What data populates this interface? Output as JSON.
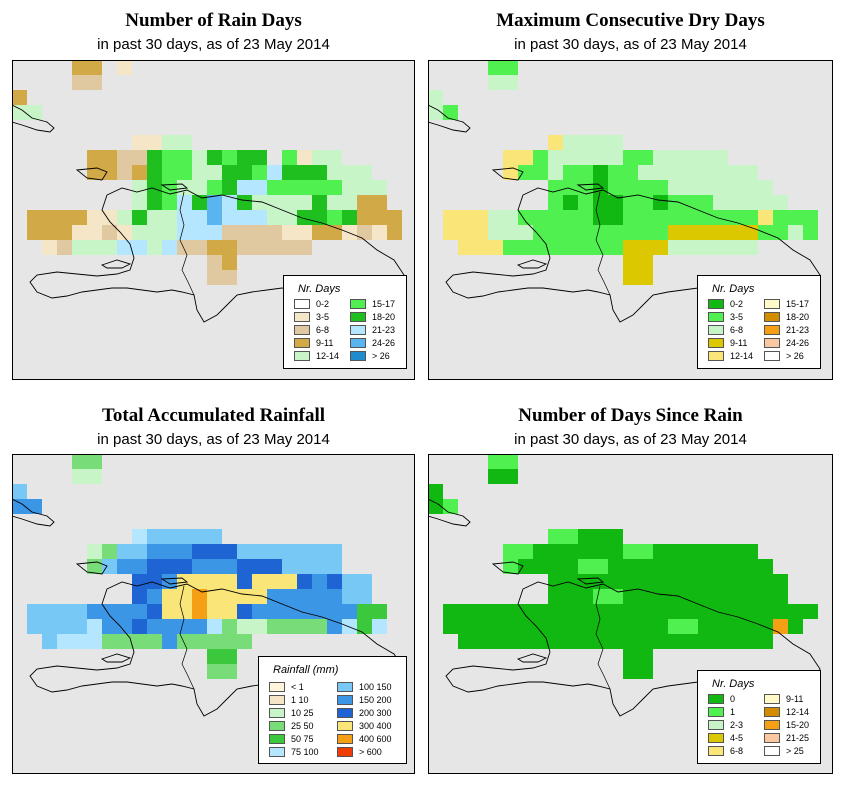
{
  "panels": [
    {
      "id": "rain-days",
      "title": "Number of Rain Days",
      "subtitle": "in past 30 days, as of  23 May 2014",
      "legend": {
        "title": "Nr. Days",
        "items": [
          {
            "label": "0-2",
            "color": "#ffffff"
          },
          {
            "label": "3-5",
            "color": "#f5e6c8"
          },
          {
            "label": "6-8",
            "color": "#e0c8a0"
          },
          {
            "label": "9-11",
            "color": "#d1a947"
          },
          {
            "label": "12-14",
            "color": "#c8f5c8"
          },
          {
            "label": "15-17",
            "color": "#4ff04f"
          },
          {
            "label": "18-20",
            "color": "#1fbf1f"
          },
          {
            "label": "21-23",
            "color": "#b4e6ff"
          },
          {
            "label": "24-26",
            "color": "#5ab4f0"
          },
          {
            "label": "> 26",
            "color": "#1e8ccd"
          }
        ]
      },
      "palette": {
        "a": "#d1a947",
        "b": "#e0c8a0",
        "c": "#f5e6c8",
        "d": "#c8f5c8",
        "e": "#4ff04f",
        "f": "#1fbf1f",
        "g": "#b4e6ff",
        "h": "#5ab4f0"
      }
    },
    {
      "id": "max-dry-days",
      "title": "Maximum Consecutive Dry Days",
      "subtitle": "in past 30 days, as of  23 May 2014",
      "legend": {
        "title": "Nr. Days",
        "items": [
          {
            "label": "0-2",
            "color": "#12b812"
          },
          {
            "label": "3-5",
            "color": "#4ff04f"
          },
          {
            "label": "6-8",
            "color": "#c8f5c8"
          },
          {
            "label": "9-11",
            "color": "#dcc800"
          },
          {
            "label": "12-14",
            "color": "#fae678"
          },
          {
            "label": "15-17",
            "color": "#fffac8"
          },
          {
            "label": "18-20",
            "color": "#d28c00"
          },
          {
            "label": "21-23",
            "color": "#f5a014"
          },
          {
            "label": "24-26",
            "color": "#fac8a0"
          },
          {
            "label": "> 26",
            "color": "#ffffff"
          }
        ]
      },
      "palette": {
        "a": "#c8f5c8",
        "b": "#4ff04f",
        "c": "#12b812",
        "d": "#fae678",
        "e": "#dcc800",
        "f": "#fffac8"
      }
    },
    {
      "id": "total-rainfall",
      "title": "Total Accumulated Rainfall",
      "subtitle": "in past 30 days, as of  23 May 2014",
      "legend": {
        "title": "Rainfall (mm)",
        "items": [
          {
            "label": "< 1",
            "color": "#fff5dc"
          },
          {
            "label": "1   10",
            "color": "#f5e6c8"
          },
          {
            "label": "10   25",
            "color": "#c8f5c8"
          },
          {
            "label": "25   50",
            "color": "#78dc78"
          },
          {
            "label": "50   75",
            "color": "#3cc83c"
          },
          {
            "label": "75   100",
            "color": "#b4e6ff"
          },
          {
            "label": "100   150",
            "color": "#78c8f5"
          },
          {
            "label": "150   200",
            "color": "#3c96e6"
          },
          {
            "label": "200   300",
            "color": "#1e64d2"
          },
          {
            "label": "300   400",
            "color": "#fae678"
          },
          {
            "label": "400   600",
            "color": "#f5a014"
          },
          {
            "label": "> 600",
            "color": "#f03c00"
          }
        ]
      },
      "palette": {
        "a": "#78c8f5",
        "b": "#3c96e6",
        "c": "#1e64d2",
        "d": "#fae678",
        "e": "#f5a014",
        "f": "#78dc78",
        "g": "#3cc83c",
        "h": "#b4e6ff",
        "i": "#c8f5c8"
      }
    },
    {
      "id": "days-since-rain",
      "title": "Number of Days Since Rain",
      "subtitle": "in past 30 days, as of  23 May 2014",
      "legend": {
        "title": "Nr. Days",
        "items": [
          {
            "label": "0",
            "color": "#12b812"
          },
          {
            "label": "1",
            "color": "#4ff04f"
          },
          {
            "label": "2-3",
            "color": "#c8f5c8"
          },
          {
            "label": "4-5",
            "color": "#dcc800"
          },
          {
            "label": "6-8",
            "color": "#fae678"
          },
          {
            "label": "9-11",
            "color": "#fffac8"
          },
          {
            "label": "12-14",
            "color": "#d28c00"
          },
          {
            "label": "15-20",
            "color": "#f5a014"
          },
          {
            "label": "21-25",
            "color": "#fac8a0"
          },
          {
            "label": "> 25",
            "color": "#ffffff"
          }
        ]
      },
      "palette": {
        "a": "#12b812",
        "b": "#4ff04f",
        "c": "#f5a014"
      }
    }
  ]
}
